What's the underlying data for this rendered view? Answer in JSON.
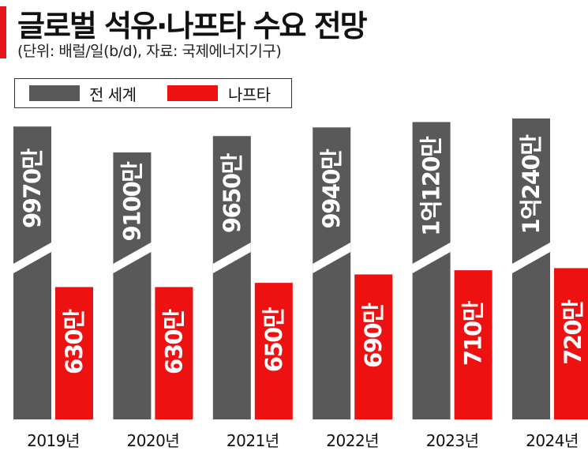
{
  "header": {
    "title": "글로벌 석유·나프타 수요 전망",
    "subtitle": "(단위: 배럴/일(b/d), 자료: 국제에너지기구)"
  },
  "colors": {
    "world": "#595959",
    "naphtha": "#ee1111",
    "accent": "#e8141b"
  },
  "chart_data": {
    "type": "bar",
    "title": "글로벌 석유·나프타 수요 전망",
    "unit": "배럴/일(b/d)",
    "categories": [
      "2019년",
      "2020년",
      "2021년",
      "2022년",
      "2023년",
      "2024년"
    ],
    "series": [
      {
        "name": "전 세계",
        "values": [
          99700000,
          91000000,
          96500000,
          99400000,
          101200000,
          102400000
        ],
        "labels": [
          "9970만",
          "9100만",
          "9650만",
          "9940만",
          "1억120만",
          "1억240만"
        ],
        "axis_break": true
      },
      {
        "name": "나프타",
        "values": [
          6300000,
          6300000,
          6500000,
          6900000,
          7100000,
          7200000
        ],
        "labels": [
          "630만",
          "630만",
          "650만",
          "690만",
          "710만",
          "720만"
        ]
      }
    ],
    "legend": "top-left",
    "grid": false
  }
}
